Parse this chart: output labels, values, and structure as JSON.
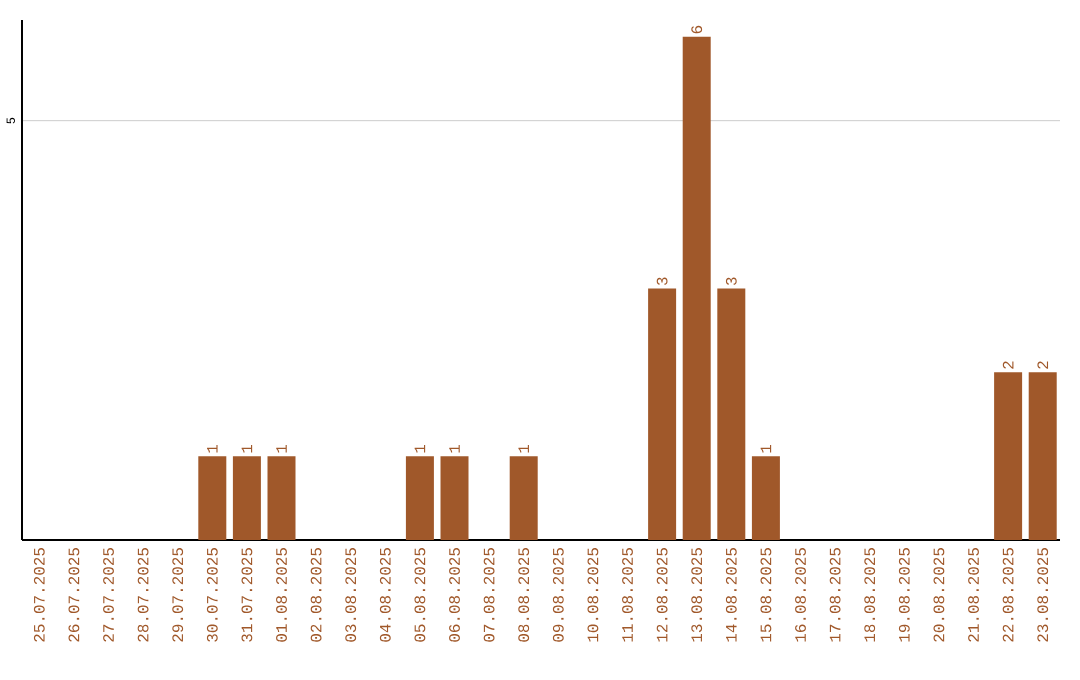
{
  "chart_data": {
    "type": "bar",
    "categories": [
      "25.07.2025",
      "26.07.2025",
      "27.07.2025",
      "28.07.2025",
      "29.07.2025",
      "30.07.2025",
      "31.07.2025",
      "01.08.2025",
      "02.08.2025",
      "03.08.2025",
      "04.08.2025",
      "05.08.2025",
      "06.08.2025",
      "07.08.2025",
      "08.08.2025",
      "09.08.2025",
      "10.08.2025",
      "11.08.2025",
      "12.08.2025",
      "13.08.2025",
      "14.08.2025",
      "15.08.2025",
      "16.08.2025",
      "17.08.2025",
      "18.08.2025",
      "19.08.2025",
      "20.08.2025",
      "21.08.2025",
      "22.08.2025",
      "23.08.2025"
    ],
    "values": [
      0,
      0,
      0,
      0,
      0,
      1,
      1,
      1,
      0,
      0,
      0,
      1,
      1,
      0,
      1,
      0,
      0,
      0,
      3,
      6,
      3,
      1,
      0,
      0,
      0,
      0,
      0,
      0,
      2,
      2
    ],
    "value_labels": [
      null,
      null,
      null,
      null,
      null,
      "1",
      "1",
      "1",
      null,
      null,
      null,
      "1",
      "1",
      null,
      "1",
      null,
      null,
      null,
      "3",
      "6",
      "3",
      "1",
      null,
      null,
      null,
      null,
      null,
      null,
      "2",
      "2"
    ],
    "color": "#a0582a",
    "ylim": [
      0,
      6.2
    ],
    "yticks": [
      5
    ],
    "grid": "y"
  }
}
